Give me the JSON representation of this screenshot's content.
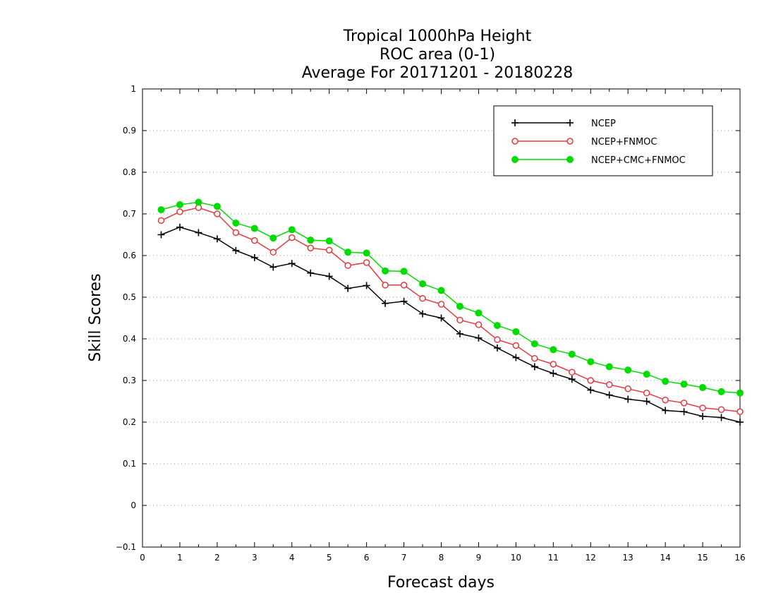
{
  "chart_data": {
    "type": "line",
    "title_lines": [
      "Tropical 1000hPa Height",
      "ROC area (0-1)",
      "Average For 20171201 - 20180228"
    ],
    "xlabel": "Forecast days",
    "ylabel": "Skill Scores",
    "xlim": [
      0,
      16
    ],
    "ylim": [
      -0.1,
      1
    ],
    "xticks": [
      "0",
      "1",
      "2",
      "3",
      "4",
      "5",
      "6",
      "7",
      "8",
      "9",
      "10",
      "11",
      "12",
      "13",
      "14",
      "15",
      "16"
    ],
    "yticks": [
      "−0.1",
      "0",
      "0.1",
      "0.2",
      "0.3",
      "0.4",
      "0.5",
      "0.6",
      "0.7",
      "0.8",
      "0.9",
      "1"
    ],
    "grid": "horizontal dotted",
    "legend_position": "top-right",
    "x": [
      0.5,
      1,
      1.5,
      2,
      2.5,
      3,
      3.5,
      4,
      4.5,
      5,
      5.5,
      6,
      6.5,
      7,
      7.5,
      8,
      8.5,
      9,
      9.5,
      10,
      10.5,
      11,
      11.5,
      12,
      12.5,
      13,
      13.5,
      14,
      14.5,
      15,
      15.5,
      16
    ],
    "series": [
      {
        "name": "NCEP",
        "color": "#000000",
        "marker": "plus",
        "values": [
          0.65,
          0.668,
          0.655,
          0.64,
          0.612,
          0.595,
          0.572,
          0.581,
          0.558,
          0.55,
          0.521,
          0.528,
          0.485,
          0.49,
          0.46,
          0.45,
          0.412,
          0.402,
          0.378,
          0.355,
          0.333,
          0.317,
          0.303,
          0.277,
          0.265,
          0.255,
          0.25,
          0.228,
          0.225,
          0.214,
          0.211,
          0.2
        ]
      },
      {
        "name": "NCEP+FNMOC",
        "color": "#e8383d",
        "marker": "open-circle",
        "values": [
          0.684,
          0.705,
          0.715,
          0.7,
          0.655,
          0.636,
          0.608,
          0.643,
          0.618,
          0.613,
          0.576,
          0.583,
          0.529,
          0.529,
          0.497,
          0.483,
          0.445,
          0.434,
          0.398,
          0.384,
          0.353,
          0.339,
          0.32,
          0.3,
          0.29,
          0.28,
          0.27,
          0.253,
          0.246,
          0.234,
          0.23,
          0.225
        ]
      },
      {
        "name": "NCEP+CMC+FNMOC",
        "color": "#00dc00",
        "marker": "filled-circle",
        "values": [
          0.71,
          0.722,
          0.728,
          0.718,
          0.678,
          0.665,
          0.642,
          0.662,
          0.637,
          0.635,
          0.608,
          0.606,
          0.563,
          0.562,
          0.532,
          0.516,
          0.478,
          0.462,
          0.432,
          0.417,
          0.388,
          0.374,
          0.363,
          0.345,
          0.333,
          0.325,
          0.315,
          0.298,
          0.291,
          0.283,
          0.273,
          0.27
        ]
      }
    ]
  }
}
